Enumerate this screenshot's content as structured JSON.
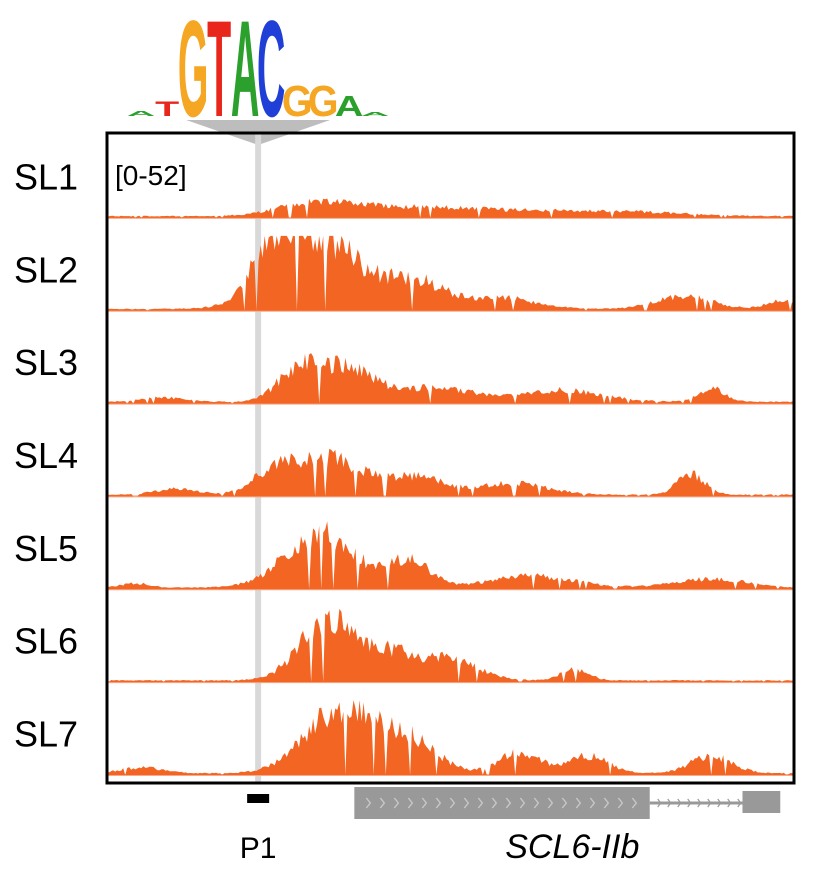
{
  "chart_data": {
    "type": "area",
    "title": "",
    "data_range_label": "[0-52]",
    "ylim": [
      0,
      52
    ],
    "x_relative_range": [
      0,
      100
    ],
    "colors": {
      "signal": "#f26522",
      "baseline": "#f7a98a",
      "highlight": "#d9d9d9",
      "gene": "#999999",
      "logo_A": "#2ca02c",
      "logo_C": "#1f3fd6",
      "logo_G": "#f5a623",
      "logo_T": "#e8261c"
    },
    "motif": {
      "name": "motif-logo",
      "letters": [
        {
          "char": "A",
          "color_key": "logo_A",
          "height": 0.05
        },
        {
          "char": "T",
          "color_key": "logo_T",
          "height": 0.15
        },
        {
          "char": "G",
          "color_key": "logo_G",
          "height": 0.95
        },
        {
          "char": "T",
          "color_key": "logo_T",
          "height": 0.95
        },
        {
          "char": "A",
          "color_key": "logo_A",
          "height": 0.95
        },
        {
          "char": "C",
          "color_key": "logo_C",
          "height": 0.95
        },
        {
          "char": "G",
          "color_key": "logo_G",
          "height": 0.3
        },
        {
          "char": "G",
          "color_key": "logo_G",
          "height": 0.3
        },
        {
          "char": "A",
          "color_key": "logo_A",
          "height": 0.2
        },
        {
          "char": "A",
          "color_key": "logo_A",
          "height": 0.04
        }
      ]
    },
    "motif_position_pct": 22,
    "tracks": [
      {
        "label": "SL1",
        "peaks": [
          [
            30,
            8,
            5
          ],
          [
            40,
            5,
            8
          ],
          [
            55,
            4,
            10
          ],
          [
            75,
            3,
            8
          ]
        ]
      },
      {
        "label": "SL2",
        "peaks": [
          [
            31,
            48,
            6
          ],
          [
            24,
            28,
            3
          ],
          [
            45,
            18,
            4
          ],
          [
            57,
            8,
            5
          ],
          [
            84,
            9,
            4
          ],
          [
            98,
            6,
            2
          ]
        ]
      },
      {
        "label": "SL3",
        "peaks": [
          [
            28,
            22,
            3
          ],
          [
            35,
            23,
            4
          ],
          [
            48,
            10,
            5
          ],
          [
            66,
            8,
            6
          ],
          [
            88,
            9,
            2
          ],
          [
            8,
            3,
            3
          ]
        ]
      },
      {
        "label": "SL4",
        "peaks": [
          [
            32,
            26,
            5
          ],
          [
            24,
            12,
            3
          ],
          [
            45,
            12,
            4
          ],
          [
            59,
            8,
            5
          ],
          [
            85,
            14,
            2
          ],
          [
            10,
            4,
            3
          ]
        ]
      },
      {
        "label": "SL5",
        "peaks": [
          [
            31,
            38,
            5
          ],
          [
            44,
            18,
            3
          ],
          [
            62,
            8,
            6
          ],
          [
            88,
            6,
            5
          ],
          [
            4,
            3,
            2
          ]
        ]
      },
      {
        "label": "SL6",
        "peaks": [
          [
            32,
            40,
            4
          ],
          [
            41,
            18,
            4
          ],
          [
            50,
            14,
            4
          ],
          [
            68,
            8,
            2
          ]
        ]
      },
      {
        "label": "SL7",
        "peaks": [
          [
            34,
            45,
            5
          ],
          [
            44,
            22,
            4
          ],
          [
            60,
            14,
            3
          ],
          [
            70,
            12,
            3
          ],
          [
            88,
            12,
            3
          ],
          [
            5,
            4,
            3
          ]
        ]
      }
    ],
    "features": {
      "p1_label": "P1",
      "p1_position_pct": 22,
      "gene_name": "SCL6-IIb",
      "gene_start_pct": 36,
      "gene_exon_end_pct": 79,
      "gene_intron_end_pct": 92.5,
      "gene_end_pct": 98,
      "gene_strand": "+"
    }
  }
}
